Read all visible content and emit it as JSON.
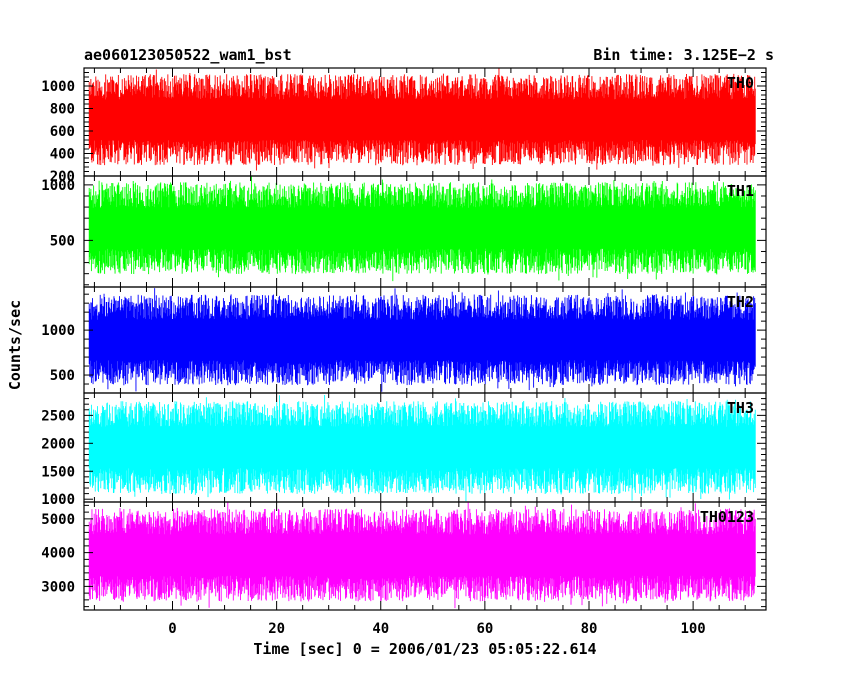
{
  "header": {
    "title": "ae060123050522_wam1_bst",
    "bin_time": "Bin time: 3.125E−2 s"
  },
  "ylabel": "Counts/sec",
  "xlabel": "Time [sec] 0 = 2006/01/23 05:05:22.614",
  "chart_data": {
    "type": "line",
    "title": "ae060123050522_wam1_bst",
    "xlabel": "Time [sec] 0 = 2006/01/23 05:05:22.614",
    "ylabel": "Counts/sec",
    "xlim": [
      -17,
      114
    ],
    "data_x_range": [
      -16,
      112
    ],
    "x_ticks": [
      0,
      20,
      40,
      60,
      80,
      100
    ],
    "x_tick_labels": [
      "0",
      "20",
      "40",
      "60",
      "80",
      "100"
    ],
    "panels": [
      {
        "name": "TH0",
        "color": "#ff0000",
        "ylim": [
          200,
          1160
        ],
        "y_ticks": [
          200,
          400,
          600,
          800,
          1000
        ],
        "y_tick_labels": [
          "200",
          "400",
          "600",
          "800",
          "1000"
        ],
        "typical_range": [
          250,
          1150
        ],
        "mean": 700
      },
      {
        "name": "TH1",
        "color": "#00ff00",
        "ylim": [
          80,
          1080
        ],
        "y_ticks": [
          500,
          1000
        ],
        "y_tick_labels": [
          "500",
          "1000"
        ],
        "typical_range": [
          150,
          1070
        ],
        "mean": 550
      },
      {
        "name": "TH2",
        "color": "#0000ff",
        "ylim": [
          300,
          1480
        ],
        "y_ticks": [
          500,
          1000
        ],
        "y_tick_labels": [
          "500",
          "1000"
        ],
        "typical_range": [
          330,
          1450
        ],
        "mean": 880
      },
      {
        "name": "TH3",
        "color": "#00ffff",
        "ylim": [
          950,
          2900
        ],
        "y_ticks": [
          1000,
          1500,
          2000,
          2500
        ],
        "y_tick_labels": [
          "1000",
          "1500",
          "2000",
          "2500"
        ],
        "typical_range": [
          1000,
          2850
        ],
        "mean": 1750
      },
      {
        "name": "TH0123",
        "color": "#ff00ff",
        "ylim": [
          2300,
          5500
        ],
        "y_ticks": [
          3000,
          4000,
          5000
        ],
        "y_tick_labels": [
          "3000",
          "4000",
          "5000"
        ],
        "typical_range": [
          2400,
          5450
        ],
        "mean": 3800
      }
    ],
    "grid": false
  }
}
